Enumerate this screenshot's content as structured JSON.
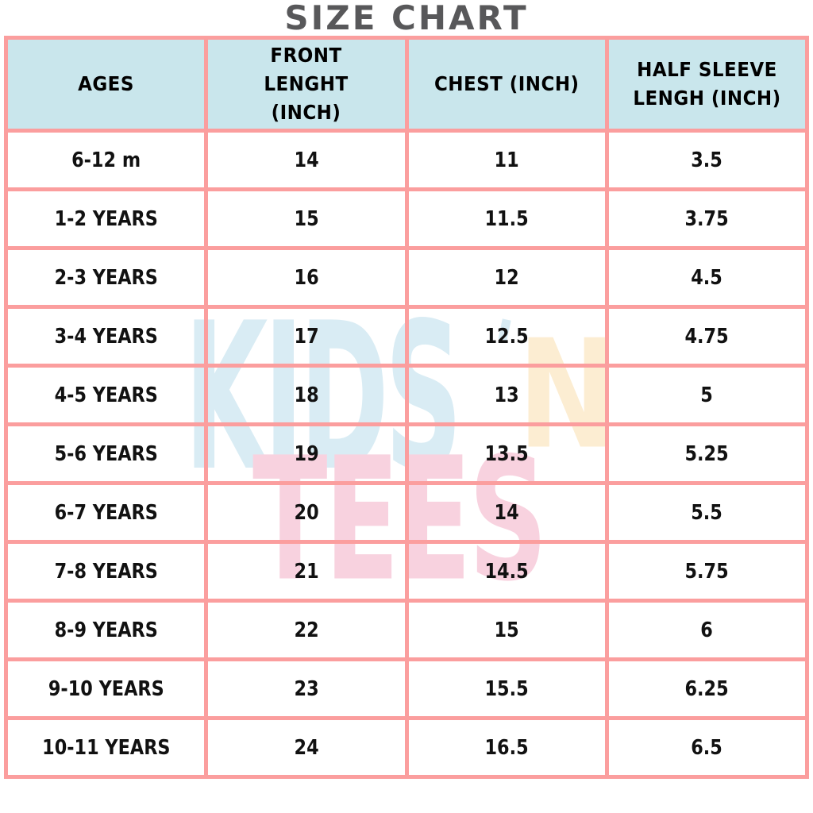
{
  "title": "SIZE CHART",
  "colors": {
    "border_pink": "#fb9e9e",
    "header_blue": "#c9e6ec",
    "title_gray": "#58585a",
    "watermark_blue": "#d9ecf4",
    "watermark_yellow": "#fcedd2",
    "watermark_pink": "#f8d2df"
  },
  "watermark": {
    "kids": "KIDS",
    "apostrophe": "'",
    "n": "N",
    "tees": "TEES"
  },
  "chart_data": {
    "type": "table",
    "title": "SIZE CHART",
    "columns": [
      "AGES",
      "FRONT LENGHT (INCH)",
      "CHEST (INCH)",
      "HALF SLEEVE LENGH (INCH)"
    ],
    "rows": [
      [
        "6-12 m",
        "14",
        "11",
        "3.5"
      ],
      [
        "1-2 YEARS",
        "15",
        "11.5",
        "3.75"
      ],
      [
        "2-3 YEARS",
        "16",
        "12",
        "4.5"
      ],
      [
        "3-4 YEARS",
        "17",
        "12.5",
        "4.75"
      ],
      [
        "4-5 YEARS",
        "18",
        "13",
        "5"
      ],
      [
        "5-6 YEARS",
        "19",
        "13.5",
        "5.25"
      ],
      [
        "6-7 YEARS",
        "20",
        "14",
        "5.5"
      ],
      [
        "7-8 YEARS",
        "21",
        "14.5",
        "5.75"
      ],
      [
        "8-9 YEARS",
        "22",
        "15",
        "6"
      ],
      [
        "9-10 YEARS",
        "23",
        "15.5",
        "6.25"
      ],
      [
        "10-11 YEARS",
        "24",
        "16.5",
        "6.5"
      ]
    ]
  }
}
